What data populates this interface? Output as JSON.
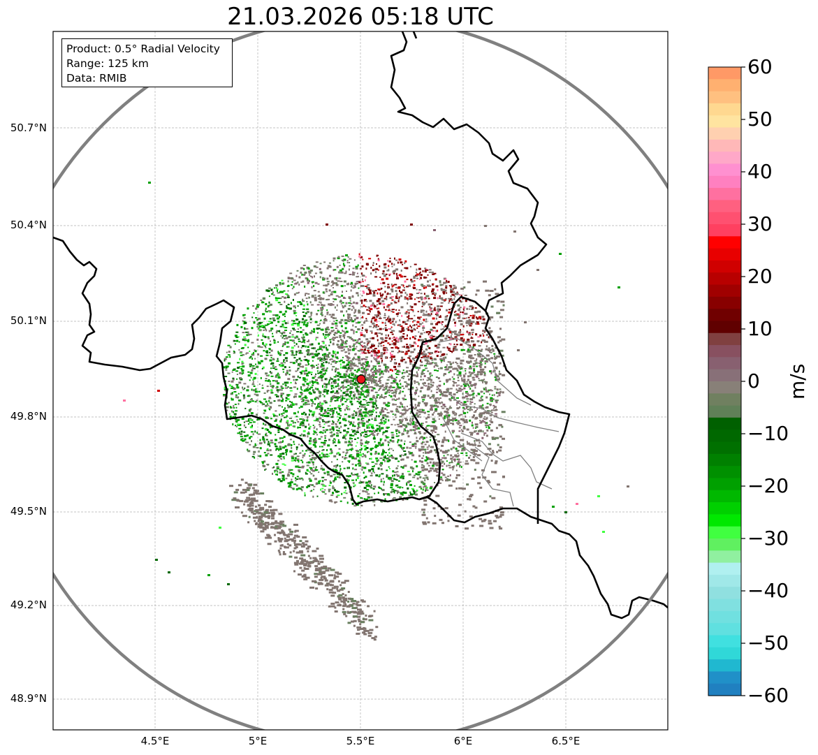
{
  "title": "21.03.2026 05:18 UTC",
  "info": {
    "product": "Product: 0.5° Radial Velocity",
    "range": "Range: 125 km",
    "data": "Data: RMIB"
  },
  "axes": {
    "lat_ticks": [
      "50.7°N",
      "50.4°N",
      "50.1°N",
      "49.8°N",
      "49.5°N",
      "49.2°N",
      "48.9°N"
    ],
    "lon_ticks": [
      "4.5°E",
      "5°E",
      "5.5°E",
      "6°E",
      "6.5°E"
    ]
  },
  "colorbar": {
    "unit": "m/s",
    "ticks": [
      "60",
      "50",
      "40",
      "30",
      "20",
      "10",
      "0",
      "−10",
      "−20",
      "−30",
      "−40",
      "−50",
      "−60"
    ],
    "colors": [
      "#ff9966",
      "#ffb070",
      "#ffc080",
      "#ffd890",
      "#ffe4a0",
      "#ffd0b0",
      "#ffb8b8",
      "#ffa8c8",
      "#ff90d0",
      "#ff80c0",
      "#ff70a0",
      "#ff6080",
      "#ff5070",
      "#ff4060",
      "#ff0000",
      "#e80000",
      "#d00000",
      "#b80000",
      "#a00000",
      "#880000",
      "#700000",
      "#600000",
      "#804040",
      "#885060",
      "#886070",
      "#887078",
      "#888078",
      "#708060",
      "#608058",
      "#006000",
      "#006800",
      "#007000",
      "#008000",
      "#009000",
      "#00a000",
      "#00b800",
      "#00d000",
      "#00e800",
      "#40ff40",
      "#60f060",
      "#90f0a0",
      "#b0f0f0",
      "#a0e8e8",
      "#90e0e0",
      "#80e0e0",
      "#70e0e0",
      "#60e0e0",
      "#40e0e0",
      "#30d8d8",
      "#20b8d0",
      "#2090c8",
      "#2080c0"
    ]
  },
  "radar": {
    "site_color": "#e8161b",
    "colors": {
      "zero": "#827570",
      "gray_green": "#6a8060",
      "green": "#00a000",
      "dark_green": "#006800",
      "bright_green": "#40ff40",
      "dark_red": "#800000",
      "red": "#d00000",
      "pink": "#ff70a0",
      "mauve": "#886070"
    }
  }
}
